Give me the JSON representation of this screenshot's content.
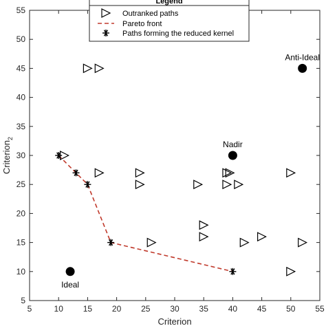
{
  "chart_data": {
    "type": "scatter",
    "xlabel": "Criterion",
    "ylabel": "Criterion",
    "ylabel_subscript": "2",
    "xlim": [
      5,
      55
    ],
    "ylim": [
      5,
      55
    ],
    "xticks": [
      5,
      10,
      15,
      20,
      25,
      30,
      35,
      40,
      45,
      50,
      55
    ],
    "yticks": [
      5,
      10,
      15,
      20,
      25,
      30,
      35,
      40,
      45,
      50,
      55
    ],
    "grid": false,
    "legend": {
      "title": "Legend",
      "placement": "top-center",
      "entries": [
        "Outranked paths",
        "Pareto front",
        "Paths forming the reduced kernel"
      ]
    },
    "series": [
      {
        "name": "Outranked paths",
        "marker": "triangle-right-open",
        "points": [
          [
            15,
            45
          ],
          [
            17,
            45
          ],
          [
            11,
            30
          ],
          [
            17,
            27
          ],
          [
            24,
            27
          ],
          [
            24,
            25
          ],
          [
            34,
            25
          ],
          [
            39,
            27
          ],
          [
            39.5,
            27
          ],
          [
            50,
            27
          ],
          [
            39,
            25
          ],
          [
            41,
            25
          ],
          [
            35,
            18
          ],
          [
            35,
            16
          ],
          [
            26,
            15
          ],
          [
            42,
            15
          ],
          [
            45,
            16
          ],
          [
            52,
            15
          ],
          [
            50,
            10
          ]
        ]
      },
      {
        "name": "Pareto front",
        "style": "dashed",
        "color": "#c0392b",
        "points": [
          [
            10,
            30
          ],
          [
            15,
            25
          ],
          [
            19,
            15
          ],
          [
            40,
            10
          ]
        ]
      },
      {
        "name": "Paths forming the reduced kernel",
        "marker": "asterisk",
        "points": [
          [
            10,
            30
          ],
          [
            13,
            27
          ],
          [
            15,
            25
          ],
          [
            19,
            15
          ],
          [
            40,
            10
          ]
        ]
      }
    ],
    "annotations": [
      {
        "label": "Ideal",
        "x": 12,
        "y": 10,
        "marker": "filled-circle"
      },
      {
        "label": "Nadir",
        "x": 40,
        "y": 30,
        "marker": "filled-circle"
      },
      {
        "label": "Anti-Ideal",
        "x": 52,
        "y": 45,
        "marker": "filled-circle"
      }
    ]
  }
}
